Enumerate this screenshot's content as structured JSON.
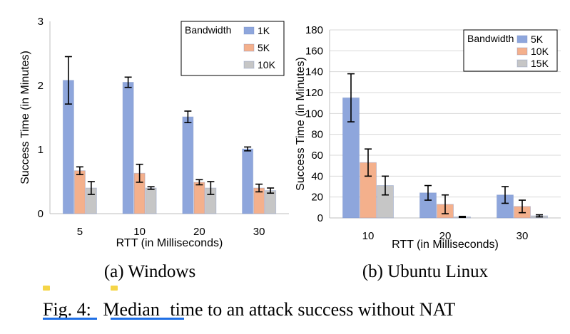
{
  "figure": {
    "caption": {
      "label": "Fig. 4:",
      "emph": "Median",
      "rest": "time to an attack success without NAT"
    },
    "note_color": "#f5d547",
    "underline_color": "#1f6fe5"
  },
  "chart_data": [
    {
      "type": "bar",
      "subcaption": "(a) Windows",
      "xlabel": "RTT (in Milliseconds)",
      "ylabel": "Success Time (in Minutes)",
      "ylim": [
        0,
        3
      ],
      "yticks": [
        "0",
        "1",
        "2",
        "3"
      ],
      "grid": false,
      "legend": {
        "title": "Bandwidth",
        "placement": "top-right"
      },
      "categories": [
        "5",
        "10",
        "20",
        "30"
      ],
      "series": [
        {
          "name": "1K",
          "color": "#8ea6dc",
          "values": [
            2.08,
            2.05,
            1.51,
            1.01
          ],
          "err": [
            0.37,
            0.08,
            0.09,
            0.03
          ]
        },
        {
          "name": "5K",
          "color": "#f4b08c",
          "values": [
            0.67,
            0.63,
            0.49,
            0.4
          ],
          "err": [
            0.06,
            0.14,
            0.04,
            0.06
          ]
        },
        {
          "name": "10K",
          "color": "#c6c6c6",
          "values": [
            0.4,
            0.4,
            0.4,
            0.36
          ],
          "err": [
            0.1,
            0.02,
            0.1,
            0.04
          ]
        }
      ]
    },
    {
      "type": "bar",
      "subcaption": "(b) Ubuntu Linux",
      "xlabel": "RTT (in Milliseconds)",
      "ylabel": "Success Time (in Minutes)",
      "ylim": [
        0,
        180
      ],
      "yticks": [
        "0",
        "20",
        "40",
        "60",
        "80",
        "100",
        "120",
        "140",
        "160",
        "180"
      ],
      "grid": true,
      "legend": {
        "title": "Bandwidth",
        "placement": "top-right"
      },
      "categories": [
        "10",
        "20",
        "30"
      ],
      "series": [
        {
          "name": "5K",
          "color": "#8ea6dc",
          "values": [
            115,
            24,
            22
          ],
          "err": [
            23,
            7,
            8
          ]
        },
        {
          "name": "10K",
          "color": "#f4b08c",
          "values": [
            53,
            13,
            11
          ],
          "err": [
            13,
            9,
            6
          ]
        },
        {
          "name": "15K",
          "color": "#c6c6c6",
          "values": [
            31,
            1,
            2
          ],
          "err": [
            9,
            0.5,
            1
          ]
        }
      ]
    }
  ]
}
